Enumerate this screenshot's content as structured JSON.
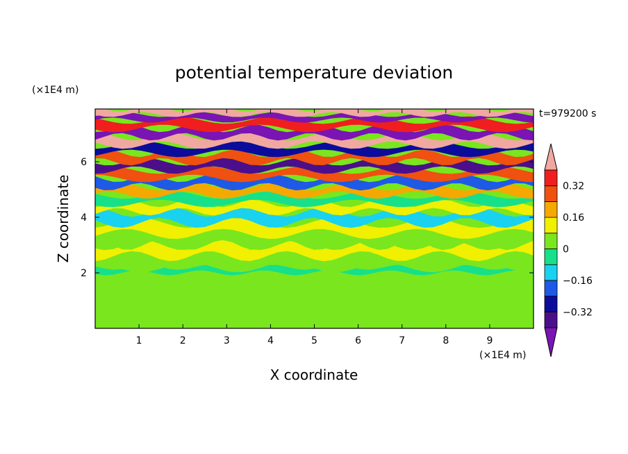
{
  "chart_data": {
    "type": "heatmap",
    "title": "potential temperature deviation",
    "xlabel": "X coordinate",
    "ylabel": "Z coordinate",
    "x_unit": "(×1E4 m)",
    "y_unit": "(×1E4 m)",
    "time_label": "t=979200 s",
    "xlim": [
      0,
      10
    ],
    "ylim": [
      0,
      7.9
    ],
    "x_ticks": [
      1,
      2,
      3,
      4,
      5,
      6,
      7,
      8,
      9
    ],
    "y_ticks": [
      2,
      4,
      6
    ],
    "colorbar": {
      "labels": [
        "0.32",
        "0.16",
        "0",
        "−0.16",
        "−0.32"
      ],
      "label_values": [
        0.32,
        0.16,
        0,
        -0.16,
        -0.32
      ],
      "levels": [
        -0.4,
        -0.32,
        -0.24,
        -0.16,
        -0.08,
        0,
        0.08,
        0.16,
        0.24,
        0.32,
        0.4
      ],
      "colors": [
        "#4b0f8c",
        "#0c0c9c",
        "#1e5ae6",
        "#18d2f0",
        "#16e08a",
        "#7ae61e",
        "#f0f000",
        "#f5a800",
        "#f05010",
        "#f01e1e"
      ],
      "under_color": "#7a14b4",
      "over_color": "#f0a8a0"
    },
    "bands": [
      {
        "z0": 0.0,
        "z1": 0.95,
        "value": 0.02
      },
      {
        "z0": 0.95,
        "z1": 2.0,
        "value": 0.03
      },
      {
        "z0": 2.0,
        "z1": 2.2,
        "value": -0.02
      },
      {
        "z0": 2.2,
        "z1": 2.6,
        "value": 0.05
      },
      {
        "z0": 2.6,
        "z1": 3.0,
        "value": 0.09
      },
      {
        "z0": 3.0,
        "z1": 3.4,
        "value": 0.01
      },
      {
        "z0": 3.4,
        "z1": 3.8,
        "value": 0.1
      },
      {
        "z0": 3.8,
        "z1": 4.2,
        "value": -0.1
      },
      {
        "z0": 4.2,
        "z1": 4.5,
        "value": 0.12
      },
      {
        "z0": 4.5,
        "z1": 4.8,
        "value": -0.05
      },
      {
        "z0": 4.8,
        "z1": 5.1,
        "value": 0.22
      },
      {
        "z0": 5.1,
        "z1": 5.4,
        "value": -0.2
      },
      {
        "z0": 5.4,
        "z1": 5.7,
        "value": 0.26
      },
      {
        "z0": 5.7,
        "z1": 6.0,
        "value": -0.34
      },
      {
        "z0": 6.0,
        "z1": 6.3,
        "value": 0.3
      },
      {
        "z0": 6.3,
        "z1": 6.6,
        "value": -0.3
      },
      {
        "z0": 6.6,
        "z1": 6.9,
        "value": 0.42
      },
      {
        "z0": 6.9,
        "z1": 7.2,
        "value": -0.42
      },
      {
        "z0": 7.2,
        "z1": 7.5,
        "value": 0.36
      },
      {
        "z0": 7.5,
        "z1": 7.7,
        "value": -0.44
      },
      {
        "z0": 7.7,
        "z1": 7.9,
        "value": 0.45
      }
    ]
  }
}
